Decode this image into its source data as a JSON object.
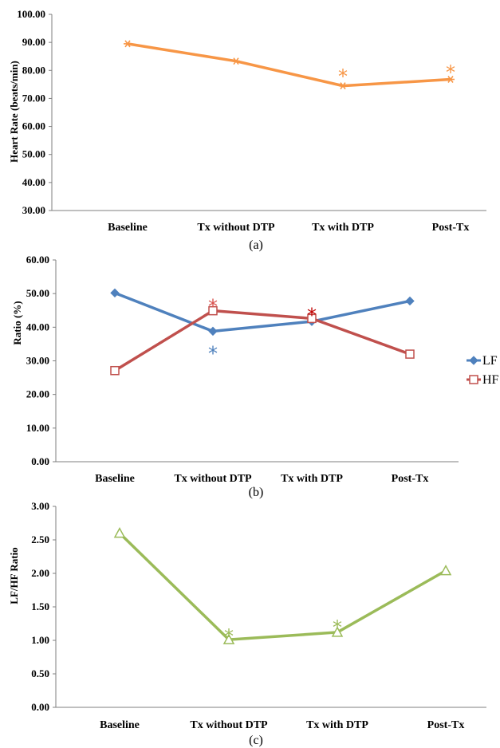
{
  "chart_data": [
    {
      "type": "line",
      "caption": "(a)",
      "ylabel": "Heart Rate (beats/min)",
      "xlabel": "",
      "categories": [
        "Baseline",
        "Tx without DTP",
        "Tx with DTP",
        "Post-Tx"
      ],
      "ylim": [
        30,
        100
      ],
      "yticks": [
        "30.00",
        "40.00",
        "50.00",
        "60.00",
        "70.00",
        "80.00",
        "90.00",
        "100.00"
      ],
      "grid": false,
      "legend": "none",
      "series": [
        {
          "values": [
            89.5,
            83.3,
            74.5,
            76.8
          ],
          "color": "#f79646",
          "marker": "asterisk"
        }
      ],
      "annotations": [
        {
          "category": "Tx with DTP",
          "text": "*",
          "y": 79.5,
          "color": "#f79646"
        },
        {
          "category": "Post-Tx",
          "text": "*",
          "y": 81.0,
          "color": "#f79646"
        }
      ]
    },
    {
      "type": "line",
      "caption": "(b)",
      "ylabel": "Ratio (%)",
      "xlabel": "",
      "categories": [
        "Baseline",
        "Tx without DTP",
        "Tx with DTP",
        "Post-Tx"
      ],
      "ylim": [
        0,
        60
      ],
      "yticks": [
        "0.00",
        "10.00",
        "20.00",
        "30.00",
        "40.00",
        "50.00",
        "60.00"
      ],
      "grid": false,
      "legend": "right",
      "series": [
        {
          "name": "LF",
          "values": [
            50.2,
            38.8,
            41.7,
            47.8
          ],
          "color": "#4f81bd",
          "marker": "diamond"
        },
        {
          "name": "HF",
          "values": [
            27.1,
            44.9,
            42.6,
            32.0
          ],
          "color": "#c0504d",
          "marker": "square"
        }
      ],
      "annotations": [
        {
          "category": "Tx without DTP",
          "text": "*",
          "y": 47.5,
          "color": "#d9534f"
        },
        {
          "category": "Tx without DTP",
          "text": "*",
          "y": 33.5,
          "color": "#4f81bd"
        },
        {
          "category": "Tx with DTP",
          "text": "*",
          "y": 45.0,
          "color": "#c00000"
        }
      ]
    },
    {
      "type": "line",
      "caption": "(c)",
      "ylabel": "LF/HF Ratio",
      "xlabel": "",
      "categories": [
        "Baseline",
        "Tx without DTP",
        "Tx with DTP",
        "Post-Tx"
      ],
      "ylim": [
        0,
        3
      ],
      "yticks": [
        "0.00",
        "0.50",
        "1.00",
        "1.50",
        "2.00",
        "2.50",
        "3.00"
      ],
      "grid": false,
      "legend": "none",
      "series": [
        {
          "values": [
            2.6,
            1.01,
            1.12,
            2.04
          ],
          "color": "#9bbb59",
          "marker": "triangle"
        }
      ],
      "annotations": [
        {
          "category": "Tx without DTP",
          "text": "*",
          "y": 1.13,
          "color": "#9bbb59"
        },
        {
          "category": "Tx with DTP",
          "text": "*",
          "y": 1.26,
          "color": "#9bbb59"
        }
      ]
    }
  ]
}
